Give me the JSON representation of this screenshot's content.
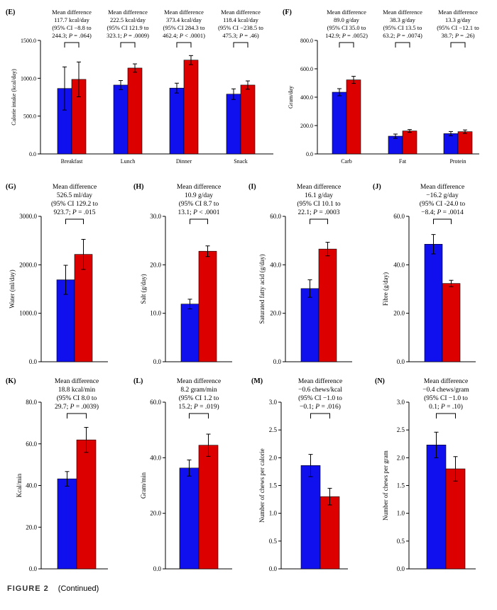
{
  "colors": {
    "series_a": "#1010ee",
    "series_b": "#dd0000",
    "ink": "#000000"
  },
  "caption": {
    "figure": "FIGURE 2",
    "note": "(Continued)"
  },
  "chart_data": [
    {
      "id": "E",
      "type": "bar",
      "label": "(E)",
      "ylabel": "Calorie intake (kcal/day)",
      "ylim": [
        0,
        1500
      ],
      "yticks": [
        "0.0",
        "500.0",
        "1000.0",
        "1500.0"
      ],
      "ytick_values": [
        0,
        500,
        1000,
        1500
      ],
      "categories": [
        "Breakfast",
        "Lunch",
        "Dinner",
        "Snack"
      ],
      "series": [
        {
          "values": [
            865,
            910,
            870,
            790
          ],
          "errors": [
            285,
            60,
            65,
            70
          ]
        },
        {
          "values": [
            985,
            1135,
            1240,
            910
          ],
          "errors": [
            230,
            55,
            60,
            55
          ]
        }
      ],
      "annotations": [
        {
          "lines": [
            "Mean difference",
            "117.7 kcal/day",
            "(95% CI −8.8 to",
            "244.3; P = .064)"
          ]
        },
        {
          "lines": [
            "Mean difference",
            "222.5 kcal/day",
            "(95% CI 121.9 to",
            "323.1; P = .0009)"
          ]
        },
        {
          "lines": [
            "Mean difference",
            "373.4 kcal/day",
            "(95% CI 284.3 to",
            "462.4; P < .0001)"
          ]
        },
        {
          "lines": [
            "Mean difference",
            "118.4 kcal/day",
            "(95% CI −238.5 to",
            "475.3; P = .46)"
          ]
        }
      ]
    },
    {
      "id": "F",
      "type": "bar",
      "label": "(F)",
      "ylabel": "Gram/day",
      "ylim": [
        0,
        800
      ],
      "yticks": [
        "0.0",
        "200.0",
        "400.0",
        "600.0",
        "800.0"
      ],
      "ytick_values": [
        0,
        200,
        400,
        600,
        800
      ],
      "categories": [
        "Carb",
        "Fat",
        "Protein"
      ],
      "series": [
        {
          "values": [
            435,
            125,
            143
          ],
          "errors": [
            25,
            15,
            15
          ]
        },
        {
          "values": [
            522,
            162,
            157
          ],
          "errors": [
            25,
            10,
            12
          ]
        }
      ],
      "annotations": [
        {
          "lines": [
            "Mean difference",
            "89.0 g/day",
            "(95% CI 35.0 to",
            "142.9; P = .0052)"
          ]
        },
        {
          "lines": [
            "Mean difference",
            "38.3 g/day",
            "(95% CI 13.5 to",
            "63.2; P = .0074)"
          ]
        },
        {
          "lines": [
            "Mean difference",
            "13.3 g/day",
            "(95% CI −12.1 to",
            "38.7; P = .26)"
          ]
        }
      ]
    },
    {
      "id": "G",
      "type": "bar",
      "label": "(G)",
      "ylabel": "Water  (ml/day)",
      "ylim": [
        0,
        3000
      ],
      "yticks": [
        "0.0",
        "1000.0",
        "2000.0",
        "3000.0"
      ],
      "ytick_values": [
        0,
        1000,
        2000,
        3000
      ],
      "categories": [
        ""
      ],
      "series": [
        {
          "values": [
            1690
          ],
          "errors": [
            300
          ]
        },
        {
          "values": [
            2215
          ],
          "errors": [
            310
          ]
        }
      ],
      "annotations": [
        {
          "lines": [
            "Mean difference",
            "526.5 ml/day",
            "(95% CI 129.2 to",
            "923.7; P = .015"
          ]
        }
      ]
    },
    {
      "id": "H",
      "type": "bar",
      "label": "(H)",
      "ylabel": "Salt (g/day)",
      "ylim": [
        0,
        30
      ],
      "yticks": [
        "0.0",
        "10.0",
        "20.0",
        "30.0"
      ],
      "ytick_values": [
        0,
        10,
        20,
        30
      ],
      "categories": [
        ""
      ],
      "series": [
        {
          "values": [
            11.9
          ],
          "errors": [
            1.0
          ]
        },
        {
          "values": [
            22.8
          ],
          "errors": [
            1.1
          ]
        }
      ],
      "annotations": [
        {
          "lines": [
            "Mean difference",
            "10.9 g/day",
            "(95% CI 8.7 to",
            "13.1; P < .0001"
          ]
        }
      ]
    },
    {
      "id": "I",
      "type": "bar",
      "label": "(I)",
      "ylabel": "Saturated fatty acid (g/day)",
      "ylim": [
        0,
        60
      ],
      "yticks": [
        "0.0",
        "20.0",
        "40.0",
        "60.0"
      ],
      "ytick_values": [
        0,
        20,
        40,
        60
      ],
      "categories": [
        ""
      ],
      "series": [
        {
          "values": [
            30.2
          ],
          "errors": [
            3.6
          ]
        },
        {
          "values": [
            46.5
          ],
          "errors": [
            2.8
          ]
        }
      ],
      "annotations": [
        {
          "lines": [
            "Mean difference",
            "16.1 g/day",
            "(95% CI 10.1 to",
            "22.1; P = .0003"
          ]
        }
      ]
    },
    {
      "id": "J",
      "type": "bar",
      "label": "(J)",
      "ylabel": "Fibre (g/day)",
      "ylim": [
        0,
        60
      ],
      "yticks": [
        "0.0",
        "20.0",
        "40.0",
        "60.0"
      ],
      "ytick_values": [
        0,
        20,
        40,
        60
      ],
      "categories": [
        ""
      ],
      "series": [
        {
          "values": [
            48.5
          ],
          "errors": [
            4.0
          ]
        },
        {
          "values": [
            32.3
          ],
          "errors": [
            1.3
          ]
        }
      ],
      "annotations": [
        {
          "lines": [
            "Mean difference",
            "−16.2 g/day",
            "(95% CI -24.0 to",
            "−8.4; P = .0014"
          ]
        }
      ]
    },
    {
      "id": "K",
      "type": "bar",
      "label": "(K)",
      "ylabel": "Kcal/min",
      "ylim": [
        0,
        80
      ],
      "yticks": [
        "0.0",
        "20.0",
        "40.0",
        "60.0",
        "80.0"
      ],
      "ytick_values": [
        0,
        20,
        40,
        60,
        80
      ],
      "categories": [
        ""
      ],
      "series": [
        {
          "values": [
            43.2
          ],
          "errors": [
            3.5
          ]
        },
        {
          "values": [
            61.9
          ],
          "errors": [
            6.0
          ]
        }
      ],
      "annotations": [
        {
          "lines": [
            "Mean difference",
            "18.8 kcal/min",
            "(95% CI 8.0 to",
            "29.7; P = .0039)"
          ]
        }
      ]
    },
    {
      "id": "L",
      "type": "bar",
      "label": "(L)",
      "ylabel": "Gram/min",
      "ylim": [
        0,
        60
      ],
      "yticks": [
        "0.0",
        "20.0",
        "40.0",
        "60.0"
      ],
      "ytick_values": [
        0,
        20,
        40,
        60
      ],
      "categories": [
        ""
      ],
      "series": [
        {
          "values": [
            36.3
          ],
          "errors": [
            2.9
          ]
        },
        {
          "values": [
            44.5
          ],
          "errors": [
            4.0
          ]
        }
      ],
      "annotations": [
        {
          "lines": [
            "Mean difference",
            "8.2 gram/min",
            "(95% CI 1.2 to",
            "15.2; P = .019)"
          ]
        }
      ]
    },
    {
      "id": "M",
      "type": "bar",
      "label": "(M)",
      "ylabel": "Number of chews per calorie",
      "ylim": [
        0,
        3
      ],
      "yticks": [
        "0.0",
        "0.5",
        "1.0",
        "1.5",
        "2.0",
        "2.5",
        "3.0"
      ],
      "ytick_values": [
        0,
        0.5,
        1,
        1.5,
        2,
        2.5,
        3
      ],
      "categories": [
        ""
      ],
      "series": [
        {
          "values": [
            1.86
          ],
          "errors": [
            0.2
          ]
        },
        {
          "values": [
            1.3
          ],
          "errors": [
            0.15
          ]
        }
      ],
      "annotations": [
        {
          "lines": [
            "Mean difference",
            "−0.6 chews/kcal",
            "(95% CI −1.0 to",
            "−0.1; P = .016)"
          ]
        }
      ]
    },
    {
      "id": "N",
      "type": "bar",
      "label": "(N)",
      "ylabel": "Number of chews per gram",
      "ylim": [
        0,
        3
      ],
      "yticks": [
        "0.0",
        "0.5",
        "1.0",
        "1.5",
        "2.0",
        "2.5",
        "3.0"
      ],
      "ytick_values": [
        0,
        0.5,
        1,
        1.5,
        2,
        2.5,
        3
      ],
      "categories": [
        ""
      ],
      "series": [
        {
          "values": [
            2.23
          ],
          "errors": [
            0.23
          ]
        },
        {
          "values": [
            1.8
          ],
          "errors": [
            0.22
          ]
        }
      ],
      "annotations": [
        {
          "lines": [
            "Mean difference",
            "−0.4 chews/gram",
            "(95% CI −1.0 to",
            "0.1; P = .10)"
          ]
        }
      ]
    }
  ]
}
